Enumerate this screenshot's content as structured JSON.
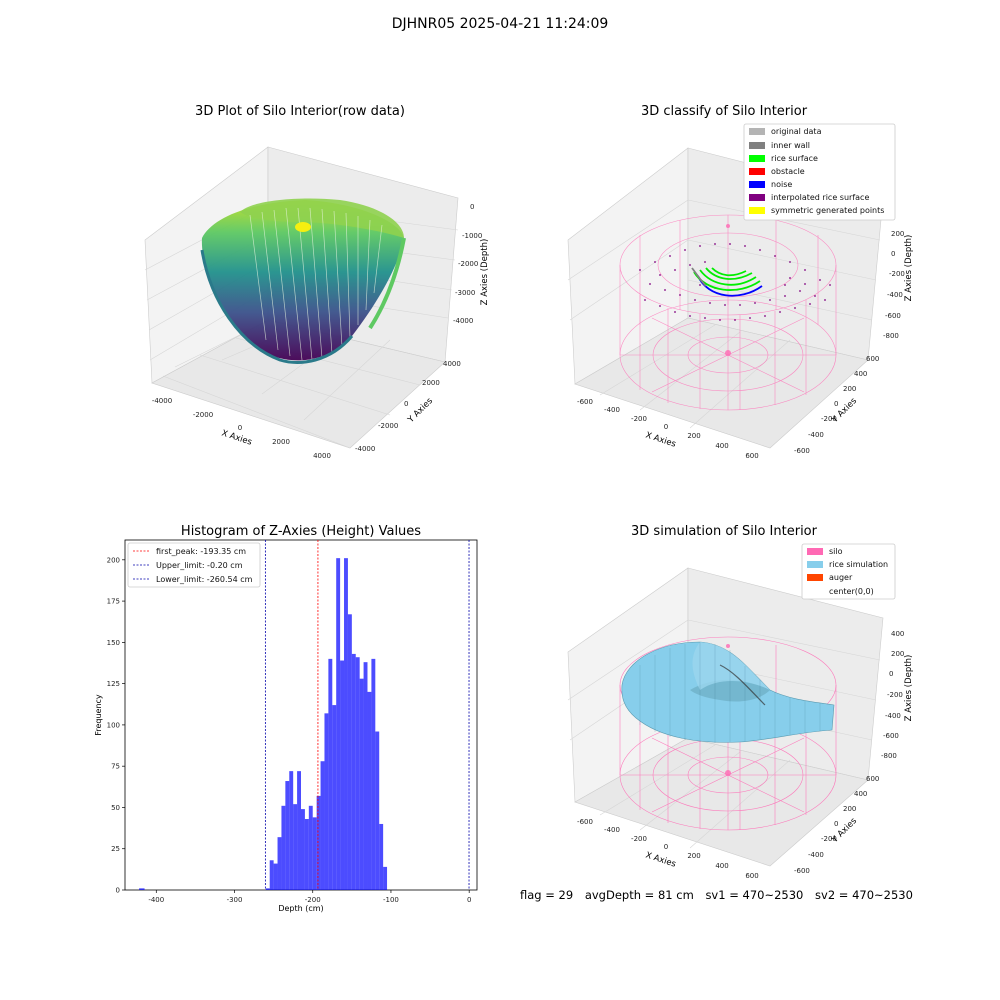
{
  "suptitle": "DJHNR05 2025-04-21 11:24:09",
  "panels": {
    "p1": {
      "title": "3D Plot of Silo Interior(row data)",
      "xlabel": "X Axies",
      "ylabel": "Y Axies",
      "zlabel": "Z Axies (Depth)",
      "xticks": [
        "-4000",
        "-2000",
        "0",
        "2000",
        "4000"
      ],
      "yticks": [
        "-4000",
        "-2000",
        "0",
        "2000",
        "4000"
      ],
      "zticks": [
        "0",
        "-1000",
        "-2000",
        "-3000",
        "-4000"
      ]
    },
    "p2": {
      "title": "3D classify of Silo Interior",
      "xlabel": "X Axies",
      "ylabel": "Y Axies",
      "zlabel": "Z Axies (Depth)",
      "xticks": [
        "-600",
        "-400",
        "-200",
        "0",
        "200",
        "400",
        "600"
      ],
      "yticks": [
        "-600",
        "-400",
        "-200",
        "0",
        "200",
        "400",
        "600"
      ],
      "zticks": [
        "200",
        "0",
        "-200",
        "-400",
        "-600",
        "-800"
      ],
      "legend": [
        {
          "label": "original data",
          "color": "#b4b4b4"
        },
        {
          "label": "inner wall",
          "color": "#808080"
        },
        {
          "label": "rice surface",
          "color": "#00ff00"
        },
        {
          "label": "obstacle",
          "color": "#ff0000"
        },
        {
          "label": "noise",
          "color": "#0000ff"
        },
        {
          "label": "interpolated rice surface",
          "color": "#800080"
        },
        {
          "label": "symmetric generated points",
          "color": "#ffff00"
        }
      ]
    },
    "p4": {
      "title": "3D simulation of Silo Interior",
      "xlabel": "X Axies",
      "ylabel": "Y Axies",
      "zlabel": "Z Axies (Depth)",
      "xticks": [
        "-600",
        "-400",
        "-200",
        "0",
        "200",
        "400",
        "600"
      ],
      "yticks": [
        "-600",
        "-400",
        "-200",
        "0",
        "200",
        "400",
        "600"
      ],
      "zticks": [
        "400",
        "200",
        "0",
        "-200",
        "-400",
        "-600",
        "-800"
      ],
      "legend": [
        {
          "label": "silo",
          "color": "#ff69b4"
        },
        {
          "label": "rice simulation",
          "color": "#87ceeb"
        },
        {
          "label": "auger",
          "color": "#ff4500"
        },
        {
          "label": "center(0,0)",
          "color": ""
        }
      ]
    }
  },
  "chart_data": [
    {
      "type": "histogram",
      "title": "Histogram of Z-Axies (Height) Values",
      "xlabel": "Depth (cm)",
      "ylabel": "Frequency",
      "xlim": [
        -440,
        10
      ],
      "ylim": [
        0,
        212
      ],
      "xticks": [
        -400,
        -300,
        -200,
        -100,
        0
      ],
      "yticks": [
        0,
        25,
        50,
        75,
        100,
        125,
        150,
        175,
        200
      ],
      "bar_color": "#0000ff",
      "bins": [
        {
          "x0": -422,
          "x1": -415,
          "count": 1
        },
        {
          "x0": -260,
          "x1": -255,
          "count": 1
        },
        {
          "x0": -255,
          "x1": -250,
          "count": 18
        },
        {
          "x0": -250,
          "x1": -245,
          "count": 16
        },
        {
          "x0": -245,
          "x1": -240,
          "count": 32
        },
        {
          "x0": -240,
          "x1": -235,
          "count": 51
        },
        {
          "x0": -235,
          "x1": -230,
          "count": 66
        },
        {
          "x0": -230,
          "x1": -225,
          "count": 72
        },
        {
          "x0": -225,
          "x1": -220,
          "count": 52
        },
        {
          "x0": -220,
          "x1": -215,
          "count": 72
        },
        {
          "x0": -215,
          "x1": -210,
          "count": 49
        },
        {
          "x0": -210,
          "x1": -205,
          "count": 43
        },
        {
          "x0": -205,
          "x1": -200,
          "count": 51
        },
        {
          "x0": -200,
          "x1": -195,
          "count": 44
        },
        {
          "x0": -195,
          "x1": -190,
          "count": 57
        },
        {
          "x0": -190,
          "x1": -185,
          "count": 78
        },
        {
          "x0": -185,
          "x1": -180,
          "count": 107
        },
        {
          "x0": -180,
          "x1": -175,
          "count": 140
        },
        {
          "x0": -175,
          "x1": -170,
          "count": 112
        },
        {
          "x0": -170,
          "x1": -165,
          "count": 201
        },
        {
          "x0": -165,
          "x1": -160,
          "count": 139
        },
        {
          "x0": -160,
          "x1": -155,
          "count": 201
        },
        {
          "x0": -155,
          "x1": -150,
          "count": 167
        },
        {
          "x0": -150,
          "x1": -145,
          "count": 143
        },
        {
          "x0": -145,
          "x1": -140,
          "count": 141
        },
        {
          "x0": -140,
          "x1": -135,
          "count": 128
        },
        {
          "x0": -135,
          "x1": -130,
          "count": 138
        },
        {
          "x0": -130,
          "x1": -125,
          "count": 120
        },
        {
          "x0": -125,
          "x1": -120,
          "count": 140
        },
        {
          "x0": -120,
          "x1": -115,
          "count": 96
        },
        {
          "x0": -115,
          "x1": -110,
          "count": 40
        },
        {
          "x0": -110,
          "x1": -105,
          "count": 14
        }
      ],
      "vlines": [
        {
          "label": "first_peak: -193.35 cm",
          "x": -193.35,
          "color": "#ff0000"
        },
        {
          "label": "Upper_limit: -0.20 cm",
          "x": -0.2,
          "color": "#0000aa"
        },
        {
          "label": "Lower_limit: -260.54 cm",
          "x": -260.54,
          "color": "#0000aa"
        }
      ],
      "legend_position": "upper-left"
    }
  ],
  "status": {
    "flag": "flag = 29",
    "avg_depth": "avgDepth = 81 cm",
    "sv1": "sv1 = 470~2530",
    "sv2": "sv2 = 470~2530"
  }
}
